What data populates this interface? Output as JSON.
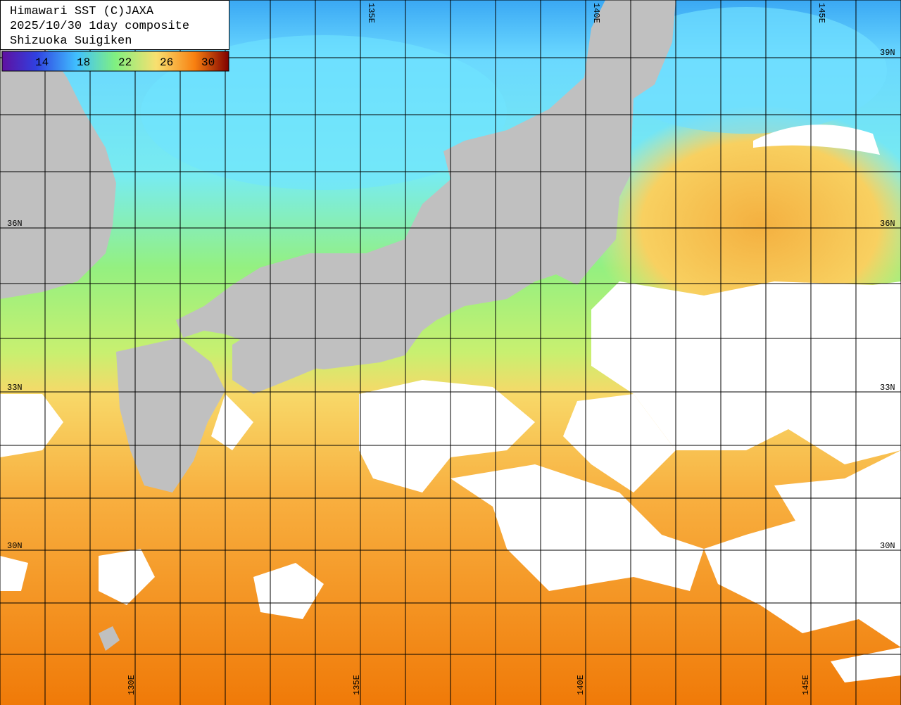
{
  "header": {
    "lines": [
      "Himawari SST (C)JAXA",
      "2025/10/30 1day composite",
      "Shizuoka Suigiken"
    ]
  },
  "colorbar": {
    "labels": [
      14,
      18,
      22,
      26,
      30
    ]
  },
  "grid": {
    "lat_left": [
      "36N",
      "33N",
      "30N"
    ],
    "lat_right": [
      "39N",
      "36N",
      "33N",
      "30N"
    ],
    "lon_top": [
      "135E",
      "140E",
      "145E"
    ],
    "lon_bottom": [
      "130E",
      "135E",
      "140E",
      "145E"
    ]
  }
}
